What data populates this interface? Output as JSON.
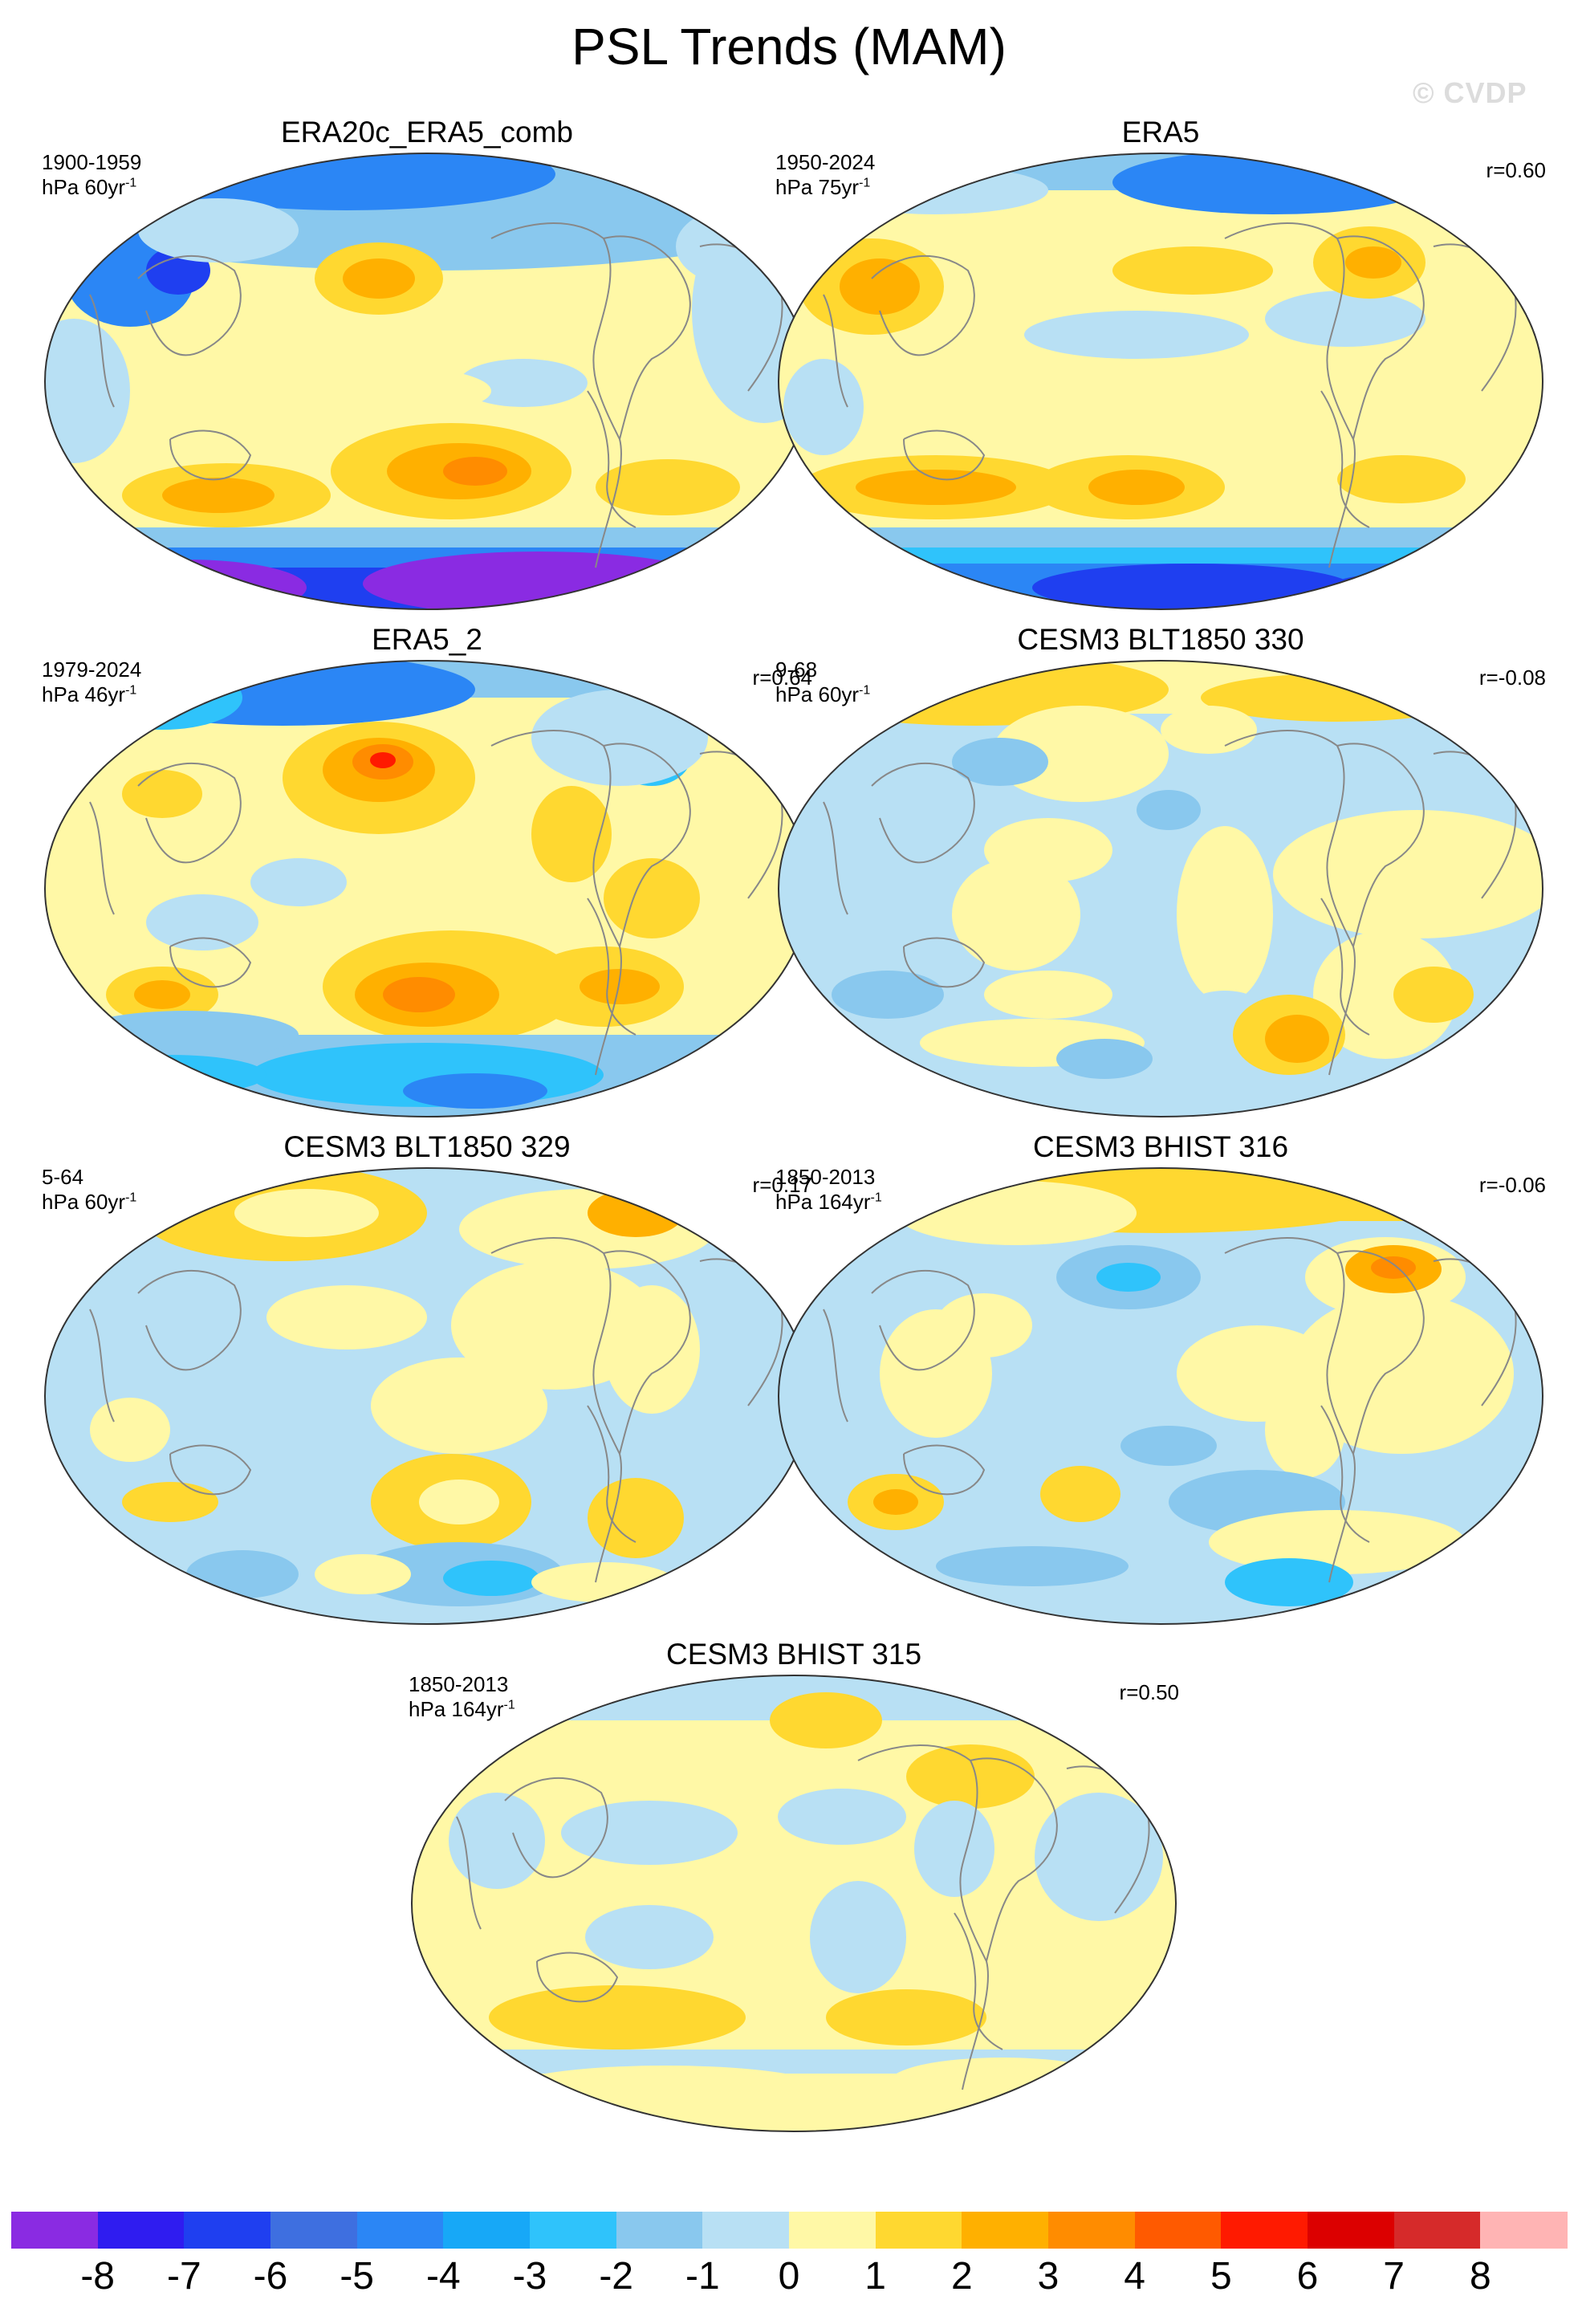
{
  "title": "PSL Trends (MAM)",
  "watermark": "© CVDP",
  "colors": {
    "scale": [
      "#8a2be2",
      "#2f1cf0",
      "#1f3ff0",
      "#3e6fe0",
      "#2b86f5",
      "#17a8f7",
      "#2fc3fb",
      "#89c8ee",
      "#b8e0f4",
      "#fff8a6",
      "#ffd830",
      "#ffb000",
      "#ff8c00",
      "#ff5a00",
      "#ff1a00",
      "#dc0000",
      "#d62a2a",
      "#ffb4b4"
    ],
    "coast": "#888888",
    "border": "#333333"
  },
  "panels": [
    {
      "title": "ERA20c_ERA5_comb",
      "period": "1900-1959",
      "units": "hPa 60yr",
      "units_exp": "-1",
      "r": ""
    },
    {
      "title": "ERA5",
      "period": "1950-2024",
      "units": "hPa 75yr",
      "units_exp": "-1",
      "r": "r=0.60"
    },
    {
      "title": "ERA5_2",
      "period": "1979-2024",
      "units": "hPa 46yr",
      "units_exp": "-1",
      "r": "r=0.64"
    },
    {
      "title": "CESM3 BLT1850 330",
      "period": "9-68",
      "units": "hPa 60yr",
      "units_exp": "-1",
      "r": "r=-0.08"
    },
    {
      "title": "CESM3 BLT1850 329",
      "period": "5-64",
      "units": "hPa 60yr",
      "units_exp": "-1",
      "r": "r=0.17"
    },
    {
      "title": "CESM3 BHIST 316",
      "period": "1850-2013",
      "units": "hPa 164yr",
      "units_exp": "-1",
      "r": "r=-0.06"
    },
    {
      "title": "CESM3 BHIST 315",
      "period": "1850-2013",
      "units": "hPa 164yr",
      "units_exp": "-1",
      "r": "r=0.50"
    }
  ],
  "legend": {
    "ticks": [
      "-8",
      "-7",
      "-6",
      "-5",
      "-4",
      "-3",
      "-2",
      "-1",
      "0",
      "1",
      "2",
      "3",
      "4",
      "5",
      "6",
      "7",
      "8"
    ]
  }
}
